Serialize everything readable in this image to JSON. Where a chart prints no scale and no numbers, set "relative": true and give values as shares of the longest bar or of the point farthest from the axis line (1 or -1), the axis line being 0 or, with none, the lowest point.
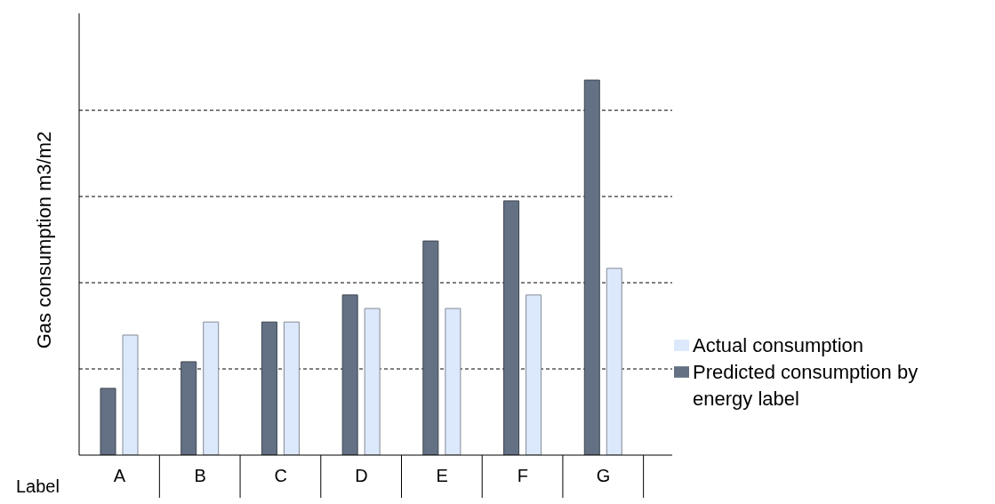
{
  "chart_data": {
    "type": "bar",
    "relative": true,
    "xlabel": "Label",
    "ylabel": "Gas consumption m3/m2",
    "categories": [
      "A",
      "B",
      "C",
      "D",
      "E",
      "F",
      "G"
    ],
    "series": [
      {
        "name": "Predicted consumption by energy label",
        "color": "#647184",
        "values": [
          0.178,
          0.249,
          0.355,
          0.427,
          0.571,
          0.678,
          1
        ]
      },
      {
        "name": "Actual consumption",
        "color": "#dce8fb",
        "values": [
          0.32,
          0.355,
          0.355,
          0.391,
          0.391,
          0.427,
          0.498
        ]
      }
    ],
    "grid": "y",
    "legend": "right"
  }
}
